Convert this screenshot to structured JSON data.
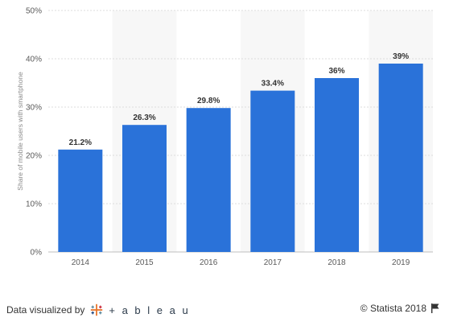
{
  "chart_data": {
    "type": "bar",
    "categories": [
      "2014",
      "2015",
      "2016",
      "2017",
      "2018",
      "2019"
    ],
    "values": [
      21.2,
      26.3,
      29.8,
      33.4,
      36,
      39
    ],
    "value_labels": [
      "21.2%",
      "26.3%",
      "29.8%",
      "33.4%",
      "36%",
      "39%"
    ],
    "ylabel": "Share of mobile users with smartphone",
    "ylim": [
      0,
      50
    ],
    "yticks": [
      0,
      10,
      20,
      30,
      40,
      50
    ],
    "ytick_labels": [
      "0%",
      "10%",
      "20%",
      "30%",
      "40%",
      "50%"
    ],
    "grid": true,
    "bar_color": "#2a72d9",
    "stripe_color": "#f7f7f7"
  },
  "footer": {
    "visualized_by": "Data visualized by",
    "tableau_word": "+ a b l e a u",
    "tableau_icon": "tableau-plus-logo",
    "copyright": "© Statista 2018",
    "flag_icon": "flag-icon"
  }
}
